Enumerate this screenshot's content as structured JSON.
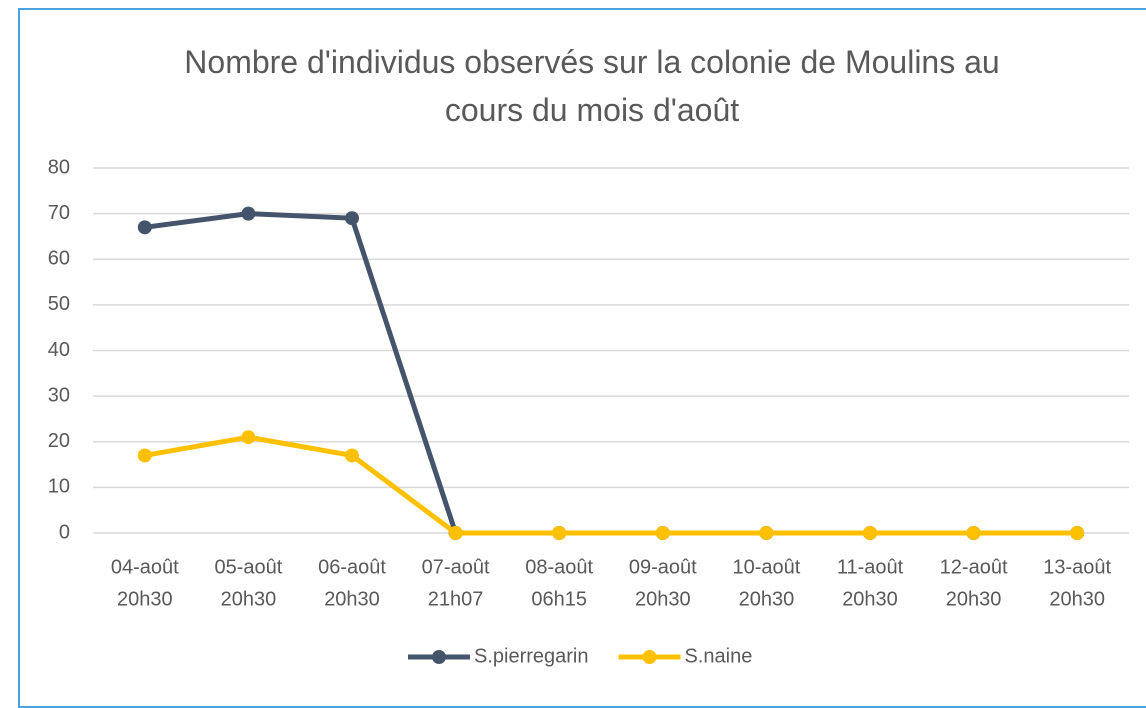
{
  "chart_data": {
    "type": "line",
    "title": "Nombre d'individus observés sur la colonie de Moulins au cours du mois d'août",
    "categories": [
      [
        "04-août",
        "20h30"
      ],
      [
        "05-août",
        "20h30"
      ],
      [
        "06-août",
        "20h30"
      ],
      [
        "07-août",
        "21h07"
      ],
      [
        "08-août",
        "06h15"
      ],
      [
        "09-août",
        "20h30"
      ],
      [
        "10-août",
        "20h30"
      ],
      [
        "11-août",
        "20h30"
      ],
      [
        "12-août",
        "20h30"
      ],
      [
        "13-août",
        "20h30"
      ]
    ],
    "series": [
      {
        "name": "S.pierregarin",
        "color": "#44546a",
        "values": [
          67,
          70,
          69,
          0,
          0,
          0,
          0,
          0,
          0,
          0
        ]
      },
      {
        "name": "S.naine",
        "color": "#ffc000",
        "values": [
          17,
          21,
          17,
          0,
          0,
          0,
          0,
          0,
          0,
          0
        ]
      }
    ],
    "ylim": [
      0,
      80
    ],
    "yticks": [
      0,
      10,
      20,
      30,
      40,
      50,
      60,
      70,
      80
    ],
    "grid": true,
    "legend": "bottom"
  }
}
